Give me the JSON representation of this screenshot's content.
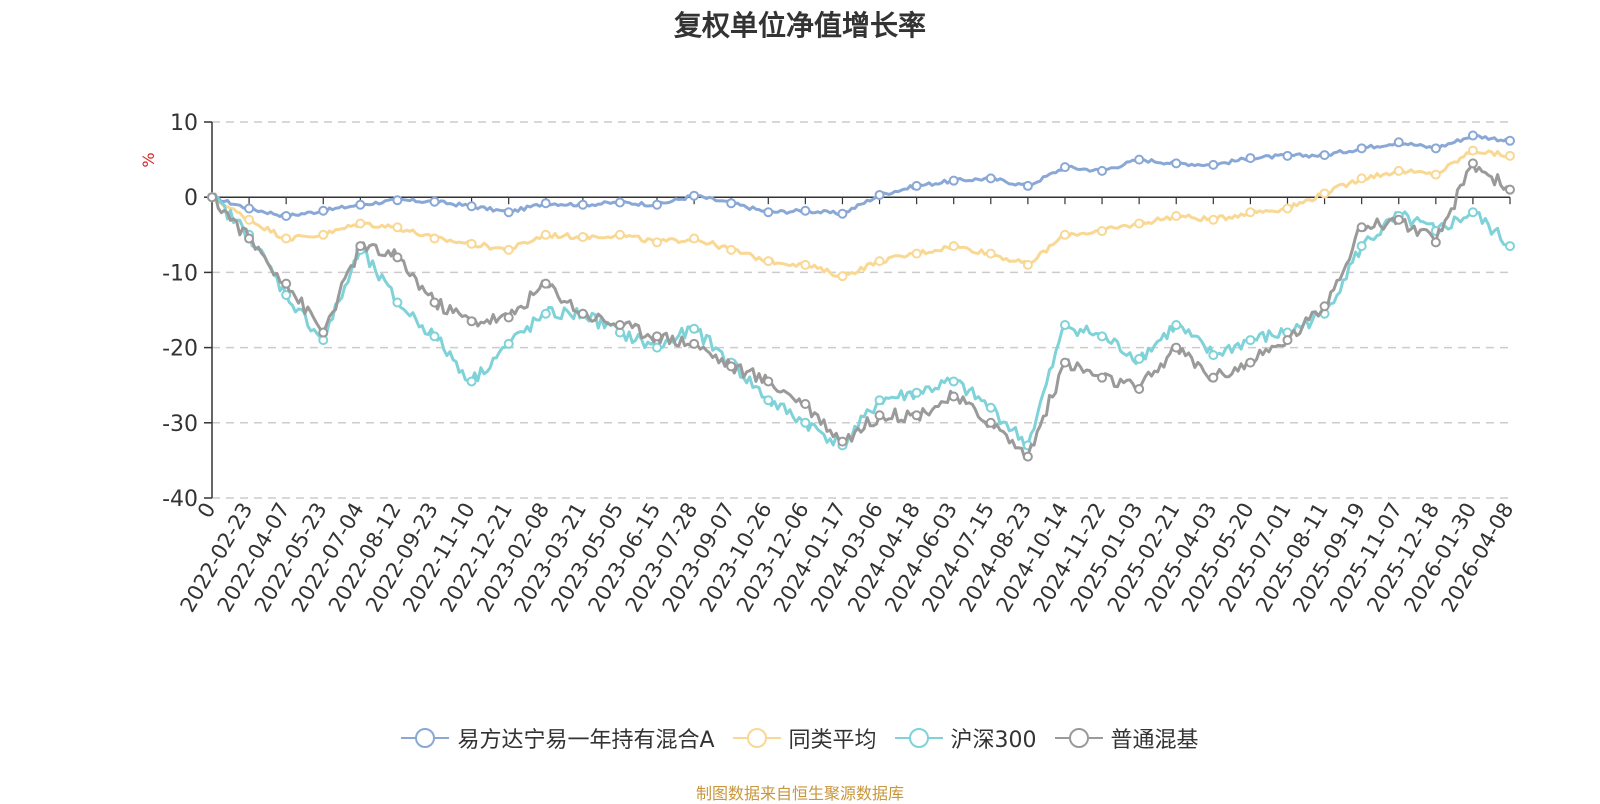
{
  "chart_data": {
    "type": "line",
    "title": "复权单位净值增长率",
    "ylabel": "%",
    "xlabel": "",
    "ylim": [
      -40,
      10
    ],
    "yticks": [
      10,
      0,
      -10,
      -20,
      -30,
      -40
    ],
    "grid": true,
    "legend_position": "bottom",
    "categories": [
      "0",
      "2022-02-23",
      "2022-04-07",
      "2022-05-23",
      "2022-07-04",
      "2022-08-12",
      "2022-09-23",
      "2022-11-10",
      "2022-12-21",
      "2023-02-08",
      "2023-03-21",
      "2023-05-05",
      "2023-06-15",
      "2023-07-28",
      "2023-09-07",
      "2023-10-26",
      "2023-12-06",
      "2024-01-17",
      "2024-03-06",
      "2024-04-18",
      "2024-06-03",
      "2024-07-15",
      "2024-08-23",
      "2024-10-14",
      "2024-11-22",
      "2025-01-03",
      "2025-02-21",
      "2025-04-03",
      "2025-05-20",
      "2025-07-01",
      "2025-08-11",
      "2025-09-19",
      "2025-11-07",
      "2025-12-18",
      "2026-01-30",
      "2026-04-08"
    ],
    "series": [
      {
        "name": "易方达宁易一年持有混合A",
        "color": "#8aa8d6",
        "values": [
          0,
          -1.5,
          -2.5,
          -1.8,
          -1.0,
          -0.4,
          -0.6,
          -1.2,
          -2.0,
          -0.8,
          -1.0,
          -0.7,
          -1.0,
          0.2,
          -0.8,
          -2.0,
          -1.8,
          -2.2,
          0.3,
          1.5,
          2.2,
          2.5,
          1.5,
          4.0,
          3.5,
          5.0,
          4.5,
          4.3,
          5.2,
          5.5,
          5.6,
          6.5,
          7.3,
          6.5,
          8.2,
          7.5
        ]
      },
      {
        "name": "同类平均",
        "color": "#f9d894",
        "values": [
          0,
          -3.0,
          -5.5,
          -5.0,
          -3.5,
          -4.0,
          -5.5,
          -6.2,
          -7.0,
          -5.0,
          -5.3,
          -5.0,
          -6.0,
          -5.5,
          -7.0,
          -8.5,
          -9.0,
          -10.5,
          -8.5,
          -7.5,
          -6.5,
          -7.5,
          -9.0,
          -5.0,
          -4.5,
          -3.5,
          -2.5,
          -3.0,
          -2.0,
          -1.5,
          0.5,
          2.5,
          3.5,
          3.0,
          6.2,
          5.5
        ]
      },
      {
        "name": "沪深300",
        "color": "#7fd3d8",
        "values": [
          0,
          -5.0,
          -13.0,
          -19.0,
          -7.0,
          -14.0,
          -18.5,
          -24.5,
          -19.5,
          -15.5,
          -15.5,
          -18.0,
          -20.0,
          -17.5,
          -22.0,
          -27.0,
          -30.0,
          -33.0,
          -27.0,
          -26.0,
          -24.5,
          -28.0,
          -33.0,
          -17.0,
          -18.5,
          -21.5,
          -17.0,
          -21.0,
          -19.0,
          -18.0,
          -15.5,
          -6.5,
          -2.5,
          -4.5,
          -2.0,
          -6.5
        ]
      },
      {
        "name": "普通混基",
        "color": "#9a9a9a",
        "values": [
          0,
          -5.5,
          -11.5,
          -18.0,
          -6.5,
          -8.0,
          -14.0,
          -16.5,
          -16.0,
          -11.5,
          -15.5,
          -17.0,
          -18.5,
          -19.5,
          -22.5,
          -24.5,
          -27.5,
          -32.5,
          -29.0,
          -29.0,
          -26.5,
          -30.0,
          -34.5,
          -22.0,
          -24.0,
          -25.5,
          -20.0,
          -24.0,
          -22.0,
          -19.0,
          -14.5,
          -4.0,
          -3.0,
          -6.0,
          4.5,
          1.0
        ]
      }
    ]
  },
  "source_note": "制图数据来自恒生聚源数据库"
}
